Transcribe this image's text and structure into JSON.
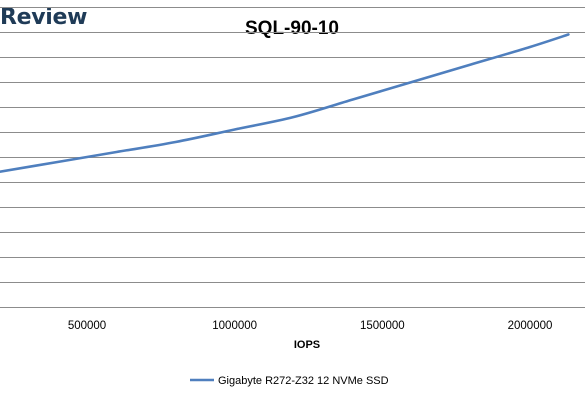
{
  "brand": {
    "text": "Review"
  },
  "chart_data": {
    "type": "line",
    "title": "SQL-90-10",
    "xlabel": "IOPS",
    "ylabel": "",
    "x_ticks": [
      500000,
      1000000,
      1500000,
      2000000
    ],
    "x_tick_labels": [
      "500000",
      "1000000",
      "1500000",
      "2000000"
    ],
    "xlim": [
      200000,
      2200000
    ],
    "ylim": [
      0,
      12
    ],
    "grid": true,
    "legend_position": "bottom",
    "series": [
      {
        "name": "Gigabyte R272-Z32 12 NVMe SSD",
        "color": "#4f7fbe",
        "x": [
          200000,
          400000,
          600000,
          800000,
          1000000,
          1200000,
          1400000,
          1600000,
          1800000,
          2000000,
          2130000
        ],
        "y": [
          5.4,
          5.8,
          6.2,
          6.6,
          7.1,
          7.6,
          8.3,
          9.0,
          9.7,
          10.4,
          10.9
        ]
      }
    ]
  }
}
